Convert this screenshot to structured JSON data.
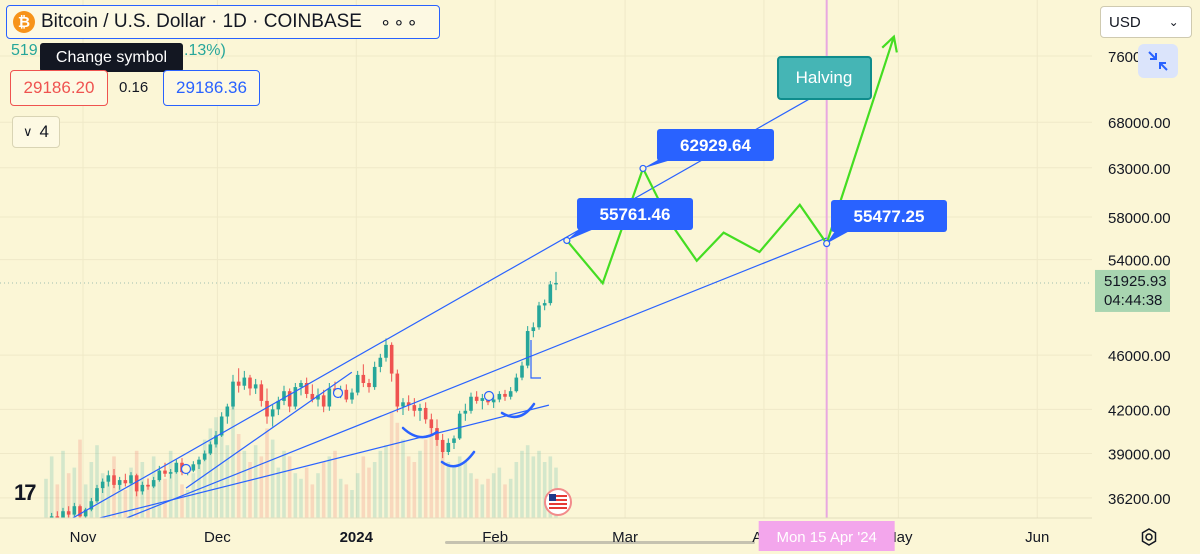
{
  "header": {
    "symbol_title": "Bitcoin / U.S. Dollar · 1D · COINBASE",
    "more_dots": "∘∘∘",
    "tooltip": "Change symbol",
    "change_left": "519",
    "change_right": ".13%)",
    "sell_price": "29186.20",
    "spread": "0.16",
    "buy_price": "29186.36",
    "collapse_count": "4",
    "collapse_chevron": "∨"
  },
  "toolbar": {
    "currency": "USD",
    "currency_chevron": "⌄",
    "fullscreen_icon": "collapse-arrows-icon",
    "settings_icon": "gear-icon",
    "logo": "17"
  },
  "colors": {
    "background": "#fbf6d6",
    "up_candle": "#26a69a",
    "down_candle": "#ef5350",
    "trendline": "#2962ff",
    "projection": "#44dd22",
    "halving_line": "#e8a8e0"
  },
  "chart_data": {
    "type": "candlestick",
    "symbol": "Bitcoin / U.S. Dollar",
    "interval": "1D",
    "exchange": "COINBASE",
    "y_scale": "log",
    "ylim": [
      35000,
      81000
    ],
    "y_ticks": [
      "76000.00",
      "68000.00",
      "63000.00",
      "58000.00",
      "54000.00",
      "46000.00",
      "42000.00",
      "39000.00",
      "36200.00"
    ],
    "x_ticks": [
      "Nov",
      "Dec",
      "2024",
      "Feb",
      "Mar",
      "Apr",
      "May",
      "Jun"
    ],
    "last_price": "51925.93",
    "countdown": "04:44:38",
    "candles_ohlc": [
      [
        34200,
        34800,
        34000,
        34600
      ],
      [
        34600,
        35300,
        34400,
        35100
      ],
      [
        35100,
        35400,
        34700,
        34900
      ],
      [
        34900,
        35600,
        34800,
        35400
      ],
      [
        35400,
        35700,
        35000,
        35200
      ],
      [
        35200,
        35900,
        35100,
        35700
      ],
      [
        35700,
        35800,
        34900,
        35100
      ],
      [
        35100,
        35600,
        34900,
        35500
      ],
      [
        35500,
        36200,
        35400,
        36000
      ],
      [
        36000,
        37000,
        35900,
        36800
      ],
      [
        36800,
        37400,
        36500,
        37200
      ],
      [
        37200,
        37900,
        36900,
        37600
      ],
      [
        37600,
        38000,
        36800,
        37000
      ],
      [
        37000,
        37500,
        36700,
        37300
      ],
      [
        37300,
        37700,
        36900,
        37100
      ],
      [
        37100,
        37800,
        37000,
        37600
      ],
      [
        37600,
        37700,
        36300,
        36600
      ],
      [
        36600,
        37200,
        36400,
        37000
      ],
      [
        37000,
        37400,
        36700,
        36900
      ],
      [
        36900,
        37500,
        36800,
        37300
      ],
      [
        37300,
        38200,
        37200,
        37900
      ],
      [
        37900,
        38400,
        37500,
        37700
      ],
      [
        37700,
        38000,
        37400,
        37800
      ],
      [
        37800,
        38600,
        37700,
        38400
      ],
      [
        38400,
        38700,
        37600,
        37800
      ],
      [
        37800,
        38100,
        37600,
        37900
      ],
      [
        37900,
        38500,
        37800,
        38300
      ],
      [
        38300,
        38800,
        38000,
        38600
      ],
      [
        38600,
        39200,
        38500,
        39000
      ],
      [
        39000,
        39800,
        38900,
        39600
      ],
      [
        39600,
        40500,
        39400,
        40200
      ],
      [
        40200,
        41800,
        40100,
        41500
      ],
      [
        41500,
        42400,
        41000,
        42200
      ],
      [
        42200,
        44500,
        42000,
        44000
      ],
      [
        44000,
        45000,
        43200,
        43700
      ],
      [
        43700,
        44800,
        43400,
        44300
      ],
      [
        44300,
        44500,
        43000,
        43500
      ],
      [
        43500,
        44200,
        43100,
        43800
      ],
      [
        43800,
        44100,
        42200,
        42600
      ],
      [
        42600,
        43500,
        41000,
        41500
      ],
      [
        41500,
        42300,
        40800,
        42000
      ],
      [
        42000,
        42900,
        41600,
        42600
      ],
      [
        42600,
        43700,
        42300,
        43300
      ],
      [
        43300,
        43500,
        41800,
        42200
      ],
      [
        42200,
        43900,
        42000,
        43600
      ],
      [
        43600,
        44100,
        43000,
        43900
      ],
      [
        43900,
        44300,
        42800,
        43100
      ],
      [
        43100,
        43800,
        42500,
        42700
      ],
      [
        42700,
        43500,
        42200,
        43000
      ],
      [
        43000,
        43400,
        41800,
        42200
      ],
      [
        42200,
        43900,
        41900,
        43500
      ],
      [
        43500,
        44000,
        42900,
        43200
      ],
      [
        43200,
        43700,
        42800,
        43400
      ],
      [
        43400,
        43800,
        42500,
        42700
      ],
      [
        42700,
        43500,
        42400,
        43200
      ],
      [
        43200,
        44800,
        43000,
        44500
      ],
      [
        44500,
        45300,
        43600,
        43900
      ],
      [
        43900,
        44200,
        43200,
        43600
      ],
      [
        43600,
        45500,
        43400,
        45100
      ],
      [
        45100,
        46100,
        44700,
        45800
      ],
      [
        45800,
        47300,
        45500,
        46800
      ],
      [
        46800,
        47000,
        44000,
        44600
      ],
      [
        44600,
        44900,
        41800,
        42200
      ],
      [
        42200,
        42800,
        41600,
        42500
      ],
      [
        42500,
        43000,
        41900,
        42300
      ],
      [
        42300,
        42800,
        41500,
        41900
      ],
      [
        41900,
        42400,
        41200,
        42100
      ],
      [
        42100,
        42500,
        41000,
        41300
      ],
      [
        41300,
        41700,
        40300,
        40700
      ],
      [
        40700,
        41300,
        39500,
        39900
      ],
      [
        39900,
        40300,
        38700,
        39100
      ],
      [
        39100,
        40000,
        38900,
        39700
      ],
      [
        39700,
        40200,
        39300,
        40000
      ],
      [
        40000,
        41900,
        39900,
        41700
      ],
      [
        41700,
        42400,
        41200,
        41900
      ],
      [
        41900,
        43200,
        41700,
        42900
      ],
      [
        42900,
        43300,
        42400,
        42600
      ],
      [
        42600,
        43100,
        42000,
        42800
      ],
      [
        42800,
        43200,
        42300,
        42500
      ],
      [
        42500,
        43000,
        42100,
        42700
      ],
      [
        42700,
        43300,
        42500,
        43100
      ],
      [
        43100,
        43400,
        42600,
        42900
      ],
      [
        42900,
        43600,
        42700,
        43300
      ],
      [
        43300,
        44600,
        43200,
        44300
      ],
      [
        44300,
        45500,
        44100,
        45200
      ],
      [
        45200,
        48300,
        45000,
        47900
      ],
      [
        47900,
        48600,
        47400,
        48200
      ],
      [
        48200,
        50300,
        48000,
        50000
      ],
      [
        50000,
        50500,
        49600,
        50200
      ],
      [
        50200,
        52100,
        50000,
        51800
      ],
      [
        51800,
        52900,
        51300,
        51926
      ]
    ],
    "projection_path": [
      {
        "date": "2024-02-17",
        "price": 55761.46
      },
      {
        "date": "2024-02-25",
        "price": 51900
      },
      {
        "date": "2024-03-05",
        "price": 62929.64
      },
      {
        "date": "2024-03-11",
        "price": 57500
      },
      {
        "date": "2024-03-17",
        "price": 53900
      },
      {
        "date": "2024-03-23",
        "price": 56500
      },
      {
        "date": "2024-03-31",
        "price": 54700
      },
      {
        "date": "2024-04-09",
        "price": 59200
      },
      {
        "date": "2024-04-15",
        "price": 55477.25
      },
      {
        "date": "2024-04-30",
        "price": 78500
      }
    ],
    "trendlines": [
      {
        "name": "upper-channel",
        "from": {
          "date": "2023-10-25",
          "price": 34300
        },
        "to": {
          "date": "2024-04-17",
          "price": 72500
        }
      },
      {
        "name": "lower-channel",
        "from": {
          "date": "2023-11-04",
          "price": 34300
        },
        "to": {
          "date": "2024-04-15",
          "price": 56000
        }
      },
      {
        "name": "mid-channel",
        "from": {
          "date": "2023-11-24",
          "price": 36800
        },
        "to": {
          "date": "2023-12-31",
          "price": 44700
        }
      },
      {
        "name": "lower-channel-2",
        "from": {
          "date": "2023-10-25",
          "price": 34300
        },
        "to": {
          "date": "2024-02-13",
          "price": 42300
        }
      }
    ],
    "price_labels": [
      "55761.46",
      "62929.64",
      "55477.25"
    ],
    "annotation": "Halving",
    "halving_date_label": "Mon 15 Apr '24",
    "volume_relative": [
      0.35,
      0.55,
      0.3,
      0.6,
      0.4,
      0.45,
      0.7,
      0.3,
      0.5,
      0.65,
      0.4,
      0.35,
      0.55,
      0.3,
      0.25,
      0.45,
      0.6,
      0.5,
      0.3,
      0.55,
      0.4,
      0.35,
      0.6,
      0.45,
      0.3,
      0.25,
      0.4,
      0.5,
      0.7,
      0.8,
      0.9,
      0.85,
      0.65,
      1.0,
      0.75,
      0.6,
      0.5,
      0.65,
      0.55,
      0.8,
      0.7,
      0.45,
      0.6,
      0.55,
      0.4,
      0.35,
      0.45,
      0.3,
      0.4,
      0.5,
      0.55,
      0.6,
      0.35,
      0.3,
      0.25,
      0.4,
      0.55,
      0.45,
      0.5,
      0.6,
      0.65,
      0.95,
      0.85,
      0.7,
      0.55,
      0.5,
      0.6,
      0.7,
      0.8,
      0.75,
      0.6,
      0.5,
      0.45,
      0.55,
      0.5,
      0.4,
      0.35,
      0.3,
      0.35,
      0.4,
      0.45,
      0.3,
      0.35,
      0.5,
      0.6,
      0.65,
      0.55,
      0.6,
      0.5,
      0.55,
      0.45
    ]
  }
}
